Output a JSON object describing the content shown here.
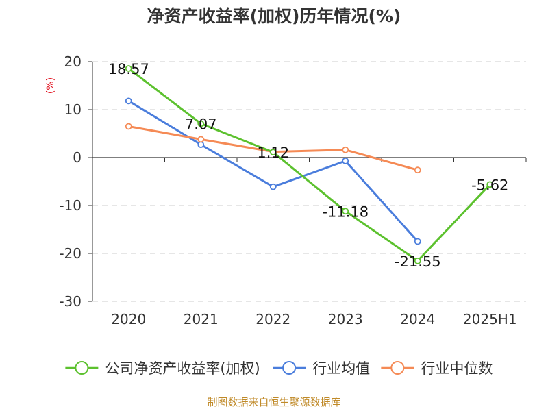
{
  "chart_data": {
    "type": "line",
    "title": "净资产收益率(加权)历年情况(%)",
    "ylabel": "(%)",
    "categories": [
      "2020",
      "2021",
      "2022",
      "2023",
      "2024",
      "2025H1"
    ],
    "ylim": [
      -30,
      20
    ],
    "yticks": [
      20,
      10,
      0,
      -10,
      -20,
      -30
    ],
    "grid": true,
    "legend_position": "bottom",
    "series": [
      {
        "name": "公司净资产收益率(加权)",
        "color": "#5cc12e",
        "values": [
          18.57,
          7.07,
          1.12,
          -11.18,
          -21.55,
          -5.62
        ],
        "labels": [
          "18.57",
          "7.07",
          "1.12",
          "-11.18",
          "-21.55",
          "-5.62"
        ]
      },
      {
        "name": "行业均值",
        "color": "#4a7ddc",
        "values": [
          11.8,
          2.7,
          -6.1,
          -0.7,
          -17.5,
          null
        ]
      },
      {
        "name": "行业中位数",
        "color": "#f58a55",
        "values": [
          6.5,
          3.8,
          1.2,
          1.6,
          -2.6,
          null
        ]
      }
    ],
    "source": "制图数据来自恒生聚源数据库"
  }
}
